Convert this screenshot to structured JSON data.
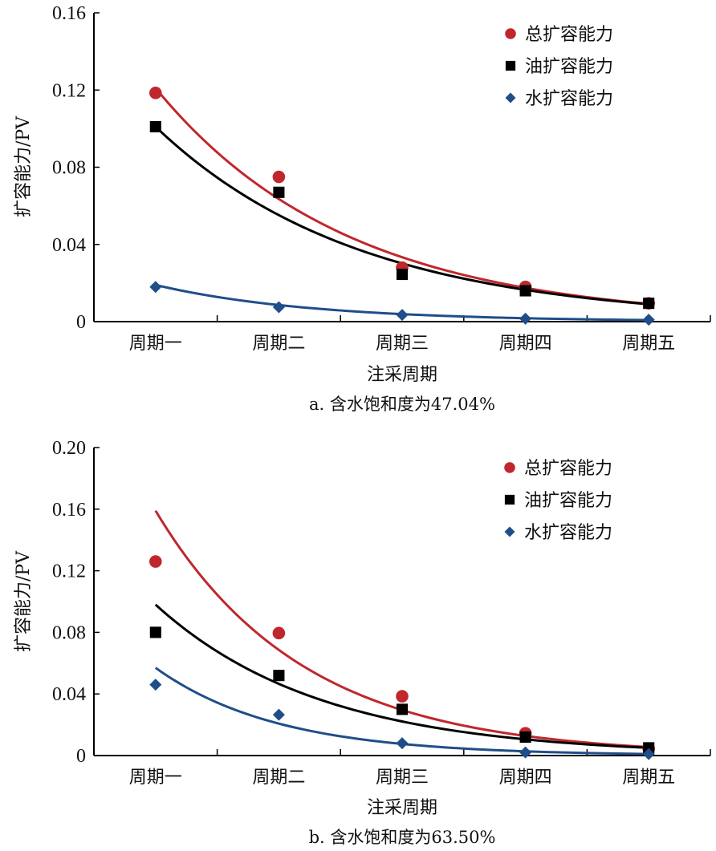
{
  "chart_data": [
    {
      "type": "scatter",
      "caption": "a. 含水饱和度为47.04%",
      "xlabel": "注采周期",
      "ylabel": "扩容能力/PV",
      "categories": [
        "周期一",
        "周期二",
        "周期三",
        "周期四",
        "周期五"
      ],
      "ylim": [
        0,
        0.16
      ],
      "yticks": [
        "0",
        "0.04",
        "0.08",
        "0.12",
        "0.16"
      ],
      "ytick_values": [
        0,
        0.04,
        0.08,
        0.12,
        0.16
      ],
      "grid": false,
      "legend_position": "top-right",
      "series": [
        {
          "name": "总扩容能力",
          "marker": "circle",
          "color": "#c0272d",
          "values": [
            0.1185,
            0.075,
            0.028,
            0.018,
            0.0095
          ],
          "trend": {
            "type": "exponential",
            "start": 0.121,
            "end": 0.0092
          }
        },
        {
          "name": "油扩容能力",
          "marker": "square",
          "color": "#000000",
          "values": [
            0.101,
            0.067,
            0.0245,
            0.016,
            0.0095
          ],
          "trend": {
            "type": "exponential",
            "start": 0.101,
            "end": 0.009
          }
        },
        {
          "name": "水扩容能力",
          "marker": "diamond",
          "color": "#1f4e89",
          "values": [
            0.018,
            0.0075,
            0.0035,
            0.0015,
            0.001
          ],
          "trend": {
            "type": "exponential",
            "start": 0.019,
            "end": 0.0008
          }
        }
      ]
    },
    {
      "type": "scatter",
      "caption": "b. 含水饱和度为63.50%",
      "xlabel": "注采周期",
      "ylabel": "扩容能力/PV",
      "categories": [
        "周期一",
        "周期二",
        "周期三",
        "周期四",
        "周期五"
      ],
      "ylim": [
        0,
        0.2
      ],
      "yticks": [
        "0",
        "0.04",
        "0.08",
        "0.12",
        "0.16",
        "0.20"
      ],
      "ytick_values": [
        0,
        0.04,
        0.08,
        0.12,
        0.16,
        0.2
      ],
      "grid": false,
      "legend_position": "top-right",
      "series": [
        {
          "name": "总扩容能力",
          "marker": "circle",
          "color": "#c0272d",
          "values": [
            0.126,
            0.0795,
            0.0385,
            0.0145,
            0.0045
          ],
          "trend": {
            "type": "exponential",
            "start": 0.159,
            "end": 0.0055
          }
        },
        {
          "name": "油扩容能力",
          "marker": "square",
          "color": "#000000",
          "values": [
            0.08,
            0.052,
            0.03,
            0.012,
            0.005
          ],
          "trend": {
            "type": "exponential",
            "start": 0.098,
            "end": 0.005
          }
        },
        {
          "name": "水扩容能力",
          "marker": "diamond",
          "color": "#1f4e89",
          "values": [
            0.046,
            0.0265,
            0.008,
            0.002,
            0.001
          ],
          "trend": {
            "type": "exponential",
            "start": 0.057,
            "end": 0.001
          }
        }
      ]
    }
  ]
}
